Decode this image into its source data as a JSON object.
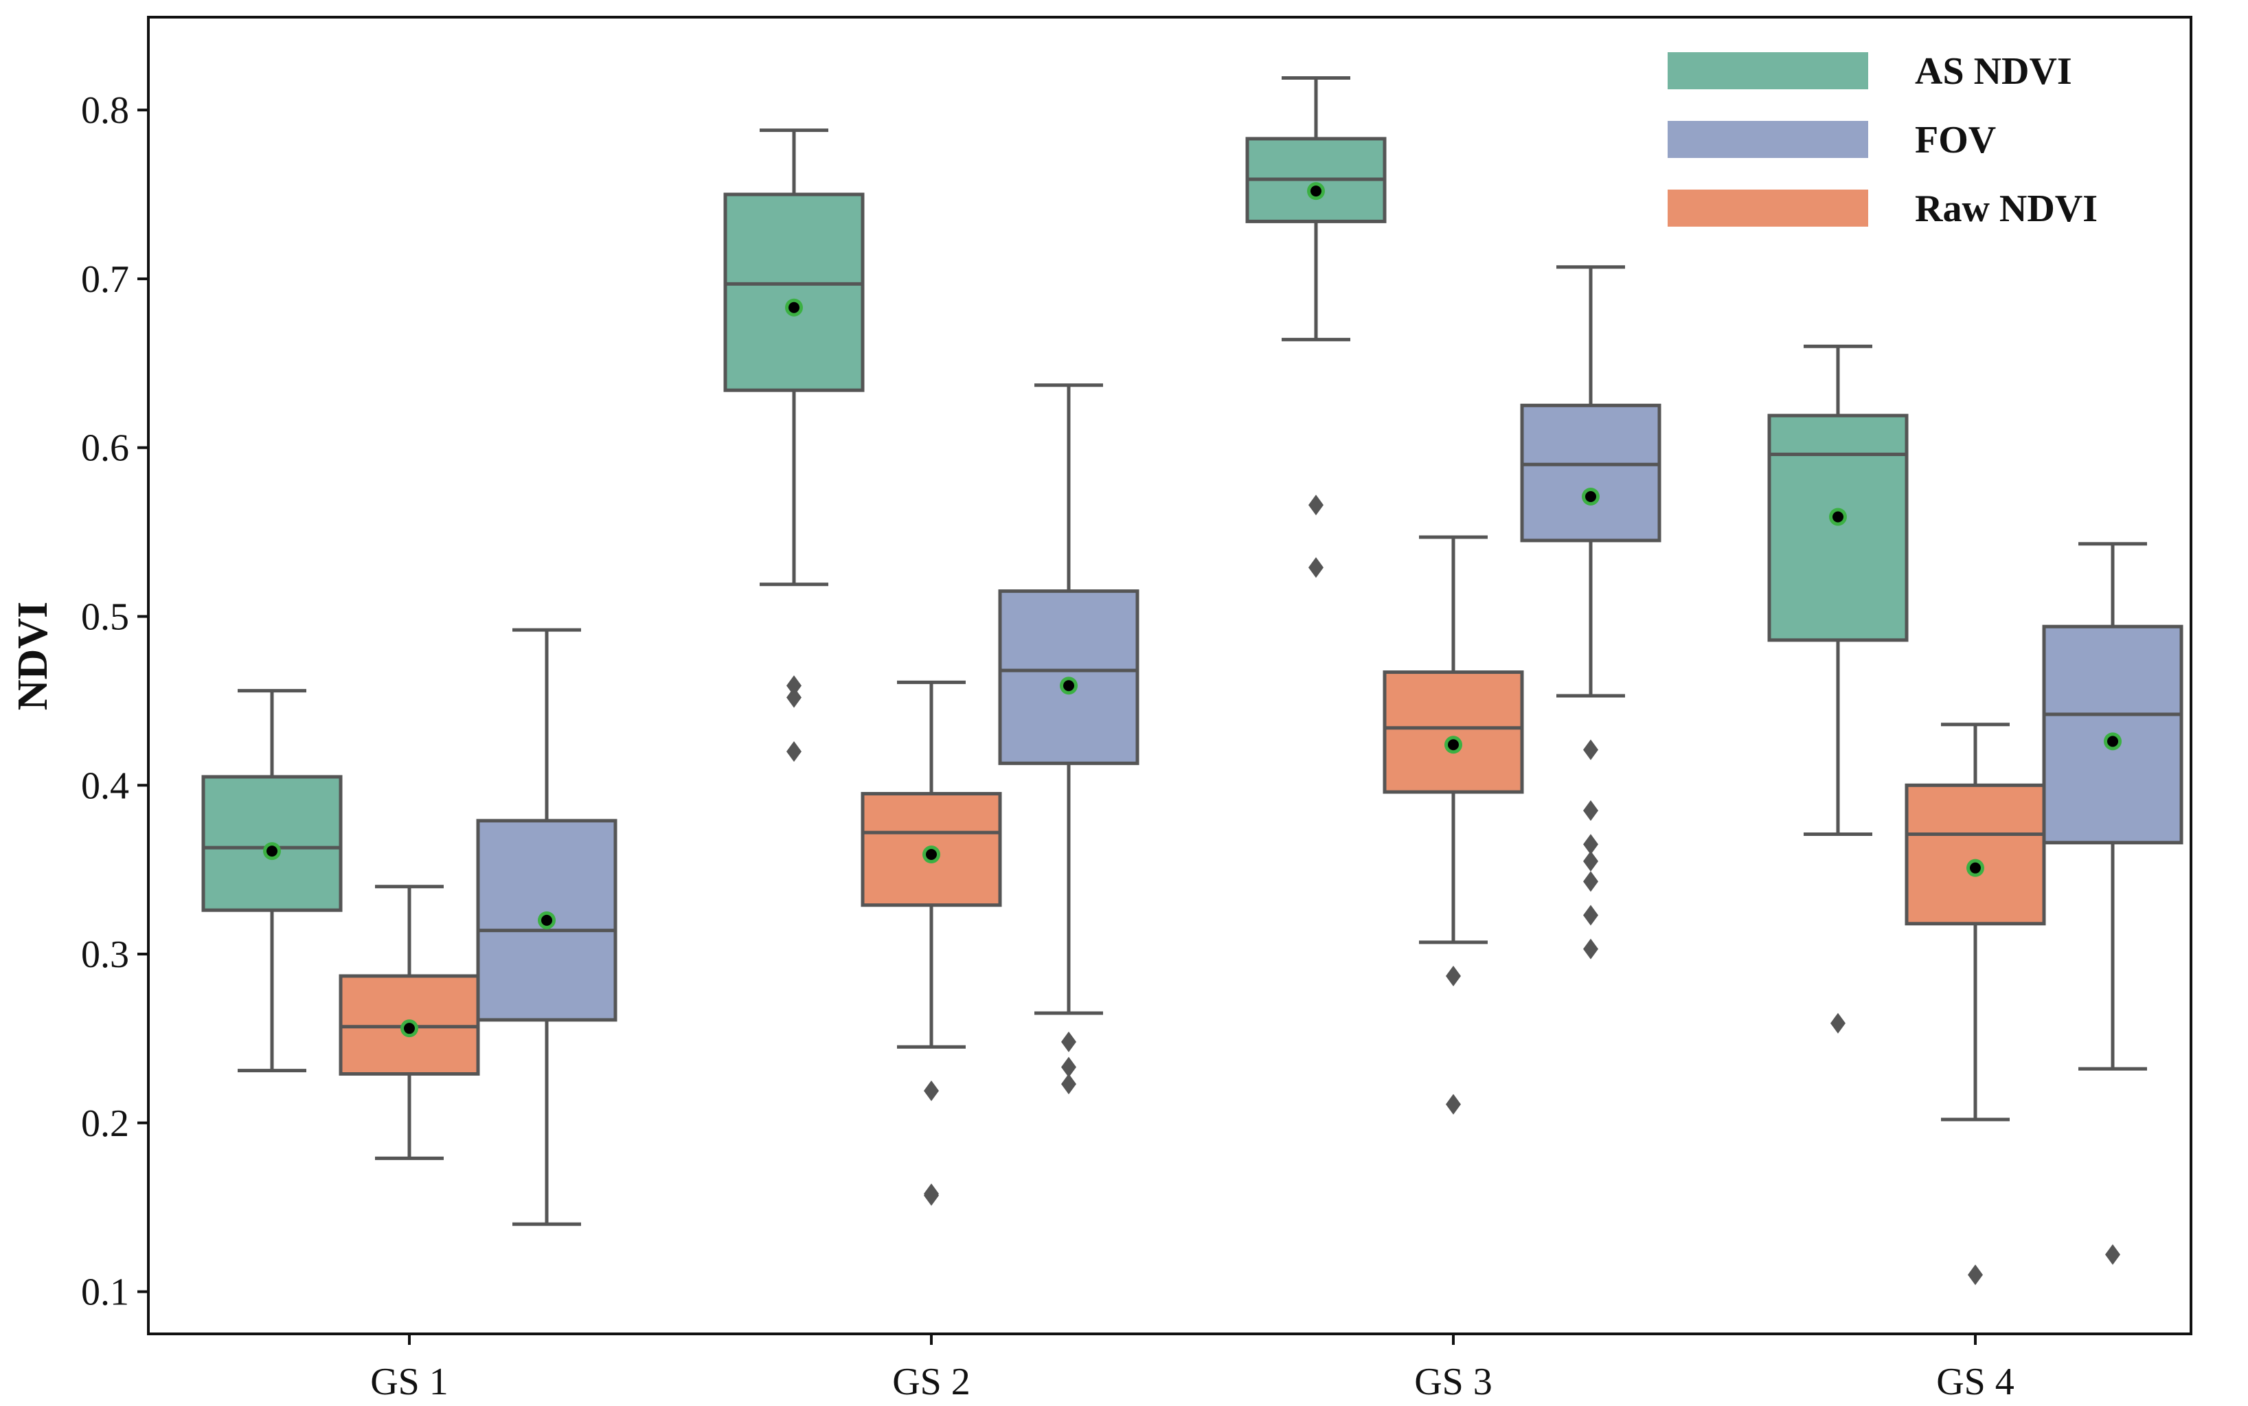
{
  "chart_data": {
    "type": "box",
    "title": "",
    "xlabel": "",
    "ylabel": "NDVI",
    "ylim": [
      0.075,
      0.855
    ],
    "yticks": [
      0.1,
      0.2,
      0.3,
      0.4,
      0.5,
      0.6,
      0.7,
      0.8
    ],
    "ytick_labels": [
      "0.1",
      "0.2",
      "0.3",
      "0.4",
      "0.5",
      "0.6",
      "0.7",
      "0.8"
    ],
    "categories": [
      "GS 1",
      "GS 2",
      "GS 3",
      "GS 4"
    ],
    "legend_position": "top-right",
    "legend": [
      {
        "name": "AS NDVI",
        "color": "#74b5a0"
      },
      {
        "name": "FOV",
        "color": "#95a3c6"
      },
      {
        "name": "Raw NDVI",
        "color": "#e9916e"
      }
    ],
    "line_color": "#555555",
    "mean_marker_color": "#3cb043",
    "groups": [
      {
        "category": "GS 1",
        "boxes": [
          {
            "series": "AS NDVI",
            "whisker_low": 0.231,
            "q1": 0.326,
            "median": 0.363,
            "q3": 0.405,
            "whisker_high": 0.456,
            "mean": 0.361,
            "outliers": []
          },
          {
            "series": "Raw NDVI",
            "whisker_low": 0.179,
            "q1": 0.229,
            "median": 0.257,
            "q3": 0.287,
            "whisker_high": 0.34,
            "mean": 0.256,
            "outliers": []
          },
          {
            "series": "FOV",
            "whisker_low": 0.14,
            "q1": 0.261,
            "median": 0.314,
            "q3": 0.379,
            "whisker_high": 0.492,
            "mean": 0.32,
            "outliers": []
          }
        ]
      },
      {
        "category": "GS 2",
        "boxes": [
          {
            "series": "AS NDVI",
            "whisker_low": 0.519,
            "q1": 0.634,
            "median": 0.697,
            "q3": 0.75,
            "whisker_high": 0.788,
            "mean": 0.683,
            "outliers": [
              0.459,
              0.452,
              0.42
            ]
          },
          {
            "series": "Raw NDVI",
            "whisker_low": 0.245,
            "q1": 0.329,
            "median": 0.372,
            "q3": 0.395,
            "whisker_high": 0.461,
            "mean": 0.359,
            "outliers": [
              0.219,
              0.158,
              0.157
            ]
          },
          {
            "series": "FOV",
            "whisker_low": 0.265,
            "q1": 0.413,
            "median": 0.468,
            "q3": 0.515,
            "whisker_high": 0.637,
            "mean": 0.459,
            "outliers": [
              0.248,
              0.233,
              0.223
            ]
          }
        ]
      },
      {
        "category": "GS 3",
        "boxes": [
          {
            "series": "AS NDVI",
            "whisker_low": 0.664,
            "q1": 0.734,
            "median": 0.759,
            "q3": 0.783,
            "whisker_high": 0.819,
            "mean": 0.752,
            "outliers": [
              0.566,
              0.529
            ]
          },
          {
            "series": "Raw NDVI",
            "whisker_low": 0.307,
            "q1": 0.396,
            "median": 0.434,
            "q3": 0.467,
            "whisker_high": 0.547,
            "mean": 0.424,
            "outliers": [
              0.287,
              0.211
            ]
          },
          {
            "series": "FOV",
            "whisker_low": 0.453,
            "q1": 0.545,
            "median": 0.59,
            "q3": 0.625,
            "whisker_high": 0.707,
            "mean": 0.571,
            "outliers": [
              0.421,
              0.385,
              0.365,
              0.355,
              0.343,
              0.323,
              0.303
            ]
          }
        ]
      },
      {
        "category": "GS 4",
        "boxes": [
          {
            "series": "AS NDVI",
            "whisker_low": 0.371,
            "q1": 0.486,
            "median": 0.596,
            "q3": 0.619,
            "whisker_high": 0.66,
            "mean": 0.559,
            "outliers": [
              0.259
            ]
          },
          {
            "series": "Raw NDVI",
            "whisker_low": 0.202,
            "q1": 0.318,
            "median": 0.371,
            "q3": 0.4,
            "whisker_high": 0.436,
            "mean": 0.351,
            "outliers": [
              0.11
            ]
          },
          {
            "series": "FOV",
            "whisker_low": 0.232,
            "q1": 0.366,
            "median": 0.442,
            "q3": 0.494,
            "whisker_high": 0.543,
            "mean": 0.426,
            "outliers": [
              0.122
            ]
          }
        ]
      }
    ]
  }
}
